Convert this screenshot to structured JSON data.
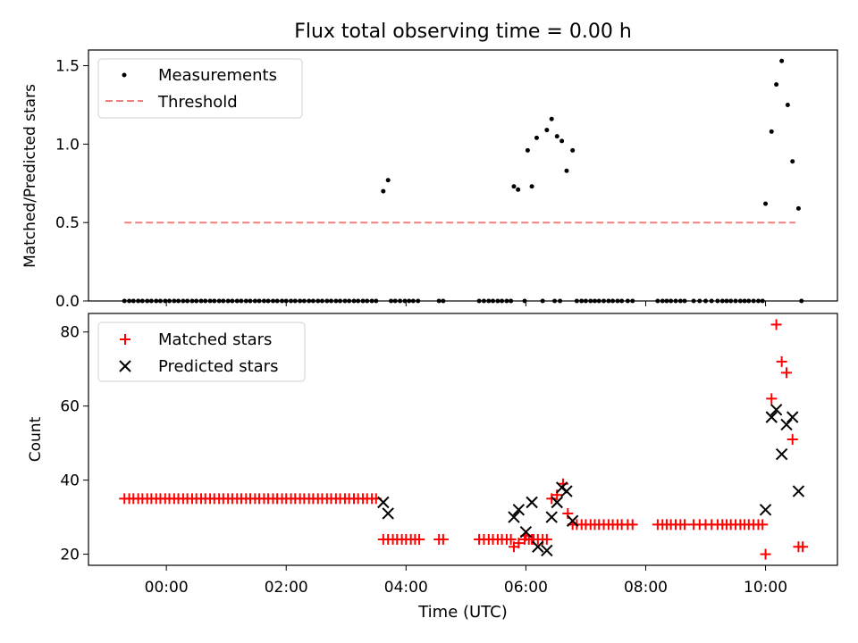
{
  "chart_data": [
    {
      "type": "scatter",
      "title": "Flux total observing time = 0.00 h",
      "xlabel": "",
      "ylabel": "Matched/Predicted stars",
      "ylim": [
        0,
        1.6
      ],
      "xlim_hours": [
        -1.3,
        11.2
      ],
      "xticks": [
        0,
        2,
        4,
        6,
        8,
        10
      ],
      "xtick_labels": [],
      "yticks": [
        0,
        0.5,
        1.0,
        1.5
      ],
      "ytick_labels": [
        "0.0",
        "0.5",
        "1.0",
        "1.5"
      ],
      "legend": {
        "placement": "top-left",
        "entries": [
          "Measurements",
          "Threshold"
        ]
      },
      "threshold": {
        "name": "Threshold",
        "value": 0.5,
        "x_range": [
          -0.7,
          10.5
        ],
        "color": "#f08080"
      },
      "series": [
        {
          "name": "Measurements",
          "color": "#000000",
          "zero_points_x": [
            -0.7,
            -0.62,
            -0.55,
            -0.47,
            -0.4,
            -0.32,
            -0.25,
            -0.17,
            -0.1,
            -0.02,
            0.05,
            0.13,
            0.2,
            0.28,
            0.35,
            0.43,
            0.5,
            0.58,
            0.65,
            0.73,
            0.8,
            0.88,
            0.95,
            1.03,
            1.1,
            1.18,
            1.25,
            1.33,
            1.4,
            1.48,
            1.55,
            1.63,
            1.7,
            1.78,
            1.85,
            1.93,
            2.0,
            2.08,
            2.15,
            2.23,
            2.3,
            2.38,
            2.45,
            2.53,
            2.6,
            2.68,
            2.75,
            2.83,
            2.9,
            2.98,
            3.05,
            3.13,
            3.2,
            3.28,
            3.35,
            3.43,
            3.5,
            3.75,
            3.82,
            3.9,
            3.98,
            4.05,
            4.12,
            4.2,
            4.55,
            4.62,
            5.22,
            5.3,
            5.38,
            5.45,
            5.53,
            5.6,
            5.68,
            5.75,
            5.98,
            6.28,
            6.48,
            6.57,
            6.85,
            6.93,
            7.0,
            7.08,
            7.15,
            7.22,
            7.3,
            7.38,
            7.45,
            7.53,
            7.6,
            7.7,
            7.78,
            8.2,
            8.28,
            8.35,
            8.42,
            8.5,
            8.58,
            8.65,
            8.8,
            8.9,
            9.0,
            9.1,
            9.2,
            9.28,
            9.35,
            9.42,
            9.5,
            9.58,
            9.65,
            9.72,
            9.8,
            9.88,
            9.95,
            10.6
          ],
          "points": [
            [
              3.62,
              0.7
            ],
            [
              3.7,
              0.77
            ],
            [
              5.8,
              0.73
            ],
            [
              5.87,
              0.71
            ],
            [
              6.03,
              0.96
            ],
            [
              6.1,
              0.73
            ],
            [
              6.18,
              1.04
            ],
            [
              6.35,
              1.09
            ],
            [
              6.43,
              1.16
            ],
            [
              6.52,
              1.05
            ],
            [
              6.6,
              1.02
            ],
            [
              6.68,
              0.83
            ],
            [
              6.78,
              0.96
            ],
            [
              10.0,
              0.62
            ],
            [
              10.1,
              1.08
            ],
            [
              10.18,
              1.38
            ],
            [
              10.27,
              1.53
            ],
            [
              10.37,
              1.25
            ],
            [
              10.45,
              0.89
            ],
            [
              10.55,
              0.59
            ]
          ]
        }
      ]
    },
    {
      "type": "scatter",
      "title": "",
      "xlabel": "Time (UTC)",
      "ylabel": "Count",
      "ylim": [
        17,
        85
      ],
      "xlim_hours": [
        -1.3,
        11.2
      ],
      "xticks": [
        0,
        2,
        4,
        6,
        8,
        10
      ],
      "xtick_labels": [
        "00:00",
        "02:00",
        "04:00",
        "06:00",
        "08:00",
        "10:00"
      ],
      "yticks": [
        20,
        40,
        60,
        80
      ],
      "ytick_labels": [
        "20",
        "40",
        "60",
        "80"
      ],
      "legend": {
        "placement": "top-left",
        "entries": [
          "Matched stars",
          "Predicted stars"
        ]
      },
      "series": [
        {
          "name": "Matched stars",
          "marker": "plus",
          "color": "#ff0000",
          "points_35_x": [
            -0.7,
            -0.62,
            -0.55,
            -0.47,
            -0.4,
            -0.32,
            -0.25,
            -0.17,
            -0.1,
            -0.02,
            0.05,
            0.13,
            0.2,
            0.28,
            0.35,
            0.43,
            0.5,
            0.58,
            0.65,
            0.73,
            0.8,
            0.88,
            0.95,
            1.03,
            1.1,
            1.18,
            1.25,
            1.33,
            1.4,
            1.48,
            1.55,
            1.63,
            1.7,
            1.78,
            1.85,
            1.93,
            2.0,
            2.08,
            2.15,
            2.23,
            2.3,
            2.38,
            2.45,
            2.53,
            2.6,
            2.68,
            2.75,
            2.83,
            2.9,
            2.98,
            3.05,
            3.13,
            3.2,
            3.28,
            3.35,
            3.43,
            3.5
          ],
          "points_24_x": [
            3.62,
            3.7,
            3.78,
            3.85,
            3.93,
            4.0,
            4.08,
            4.15,
            4.22,
            4.55,
            4.62,
            5.22,
            5.3,
            5.38,
            5.45,
            5.53,
            5.6,
            5.68,
            5.75,
            5.98,
            6.05,
            6.13,
            6.2,
            6.28,
            6.35
          ],
          "points_28_x": [
            6.85,
            6.93,
            7.0,
            7.08,
            7.15,
            7.22,
            7.3,
            7.38,
            7.45,
            7.53,
            7.6,
            7.7,
            7.78,
            8.2,
            8.28,
            8.35,
            8.42,
            8.5,
            8.58,
            8.65,
            8.8,
            8.9,
            9.0,
            9.1,
            9.2,
            9.28,
            9.35,
            9.42,
            9.5,
            9.58,
            9.65,
            9.72,
            9.8,
            9.88,
            9.95
          ],
          "points": [
            [
              5.8,
              22
            ],
            [
              5.88,
              23
            ],
            [
              6.0,
              25
            ],
            [
              6.1,
              24
            ],
            [
              6.43,
              35
            ],
            [
              6.52,
              36
            ],
            [
              6.62,
              39
            ],
            [
              6.7,
              31
            ],
            [
              6.78,
              28
            ],
            [
              10.0,
              20
            ],
            [
              10.1,
              62
            ],
            [
              10.18,
              82
            ],
            [
              10.27,
              72
            ],
            [
              10.35,
              69
            ],
            [
              10.45,
              51
            ],
            [
              10.55,
              22
            ],
            [
              10.62,
              22
            ]
          ]
        },
        {
          "name": "Predicted stars",
          "marker": "x",
          "color": "#000000",
          "points": [
            [
              3.62,
              34
            ],
            [
              3.7,
              31
            ],
            [
              5.8,
              30
            ],
            [
              5.88,
              32
            ],
            [
              6.0,
              26
            ],
            [
              6.1,
              34
            ],
            [
              6.2,
              22
            ],
            [
              6.35,
              21
            ],
            [
              6.43,
              30
            ],
            [
              6.52,
              34
            ],
            [
              6.6,
              38
            ],
            [
              6.68,
              37
            ],
            [
              6.78,
              29
            ],
            [
              10.0,
              32
            ],
            [
              10.1,
              57
            ],
            [
              10.18,
              59
            ],
            [
              10.27,
              47
            ],
            [
              10.35,
              55
            ],
            [
              10.45,
              57
            ],
            [
              10.55,
              37
            ]
          ]
        }
      ]
    }
  ]
}
